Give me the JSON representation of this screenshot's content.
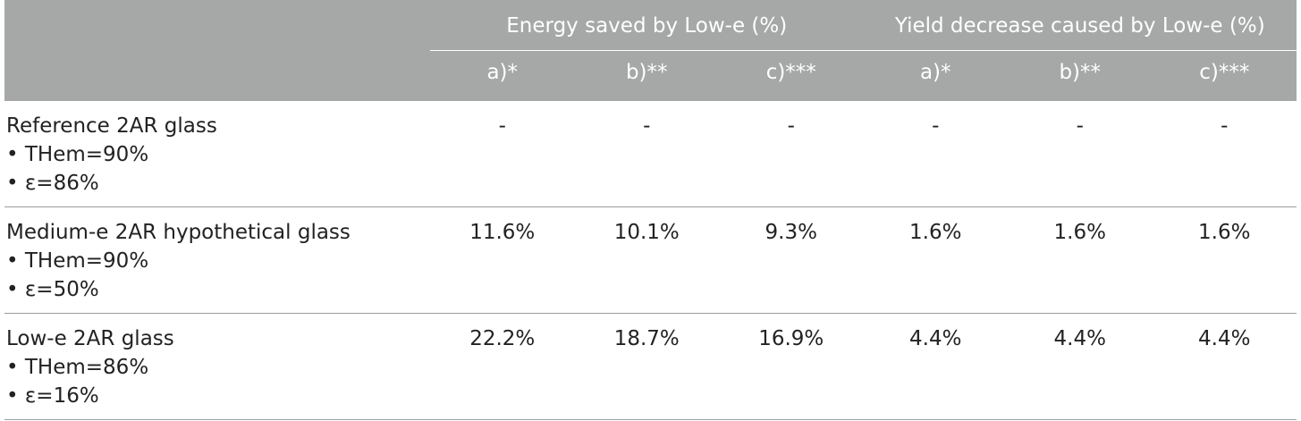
{
  "header": {
    "groups": [
      {
        "title": "Energy saved by Low-e (%)",
        "columns": [
          "a)*",
          "b)**",
          "c)***"
        ]
      },
      {
        "title": "Yield decrease caused by Low-e (%)",
        "columns": [
          "a)*",
          "b)**",
          "c)***"
        ]
      }
    ]
  },
  "rows": [
    {
      "label": "Reference 2AR glass",
      "bullets": [
        "• THem=90%",
        "• ε=86%"
      ],
      "values": [
        "-",
        "-",
        "-",
        "-",
        "-",
        "-"
      ]
    },
    {
      "label": "Medium-e 2AR hypothetical glass",
      "bullets": [
        "• THem=90%",
        "• ε=50%"
      ],
      "values": [
        "11.6%",
        "10.1%",
        "9.3%",
        "1.6%",
        "1.6%",
        "1.6%"
      ]
    },
    {
      "label": "Low-e 2AR glass",
      "bullets": [
        "• THem=86%",
        "• ε=16%"
      ],
      "values": [
        "22.2%",
        "18.7%",
        "16.9%",
        "4.4%",
        "4.4%",
        "4.4%"
      ]
    }
  ],
  "colors": {
    "header_bg": "#a6a8a7",
    "header_text": "#ffffff",
    "body_text": "#222222",
    "row_divider": "#9c9c9c"
  }
}
